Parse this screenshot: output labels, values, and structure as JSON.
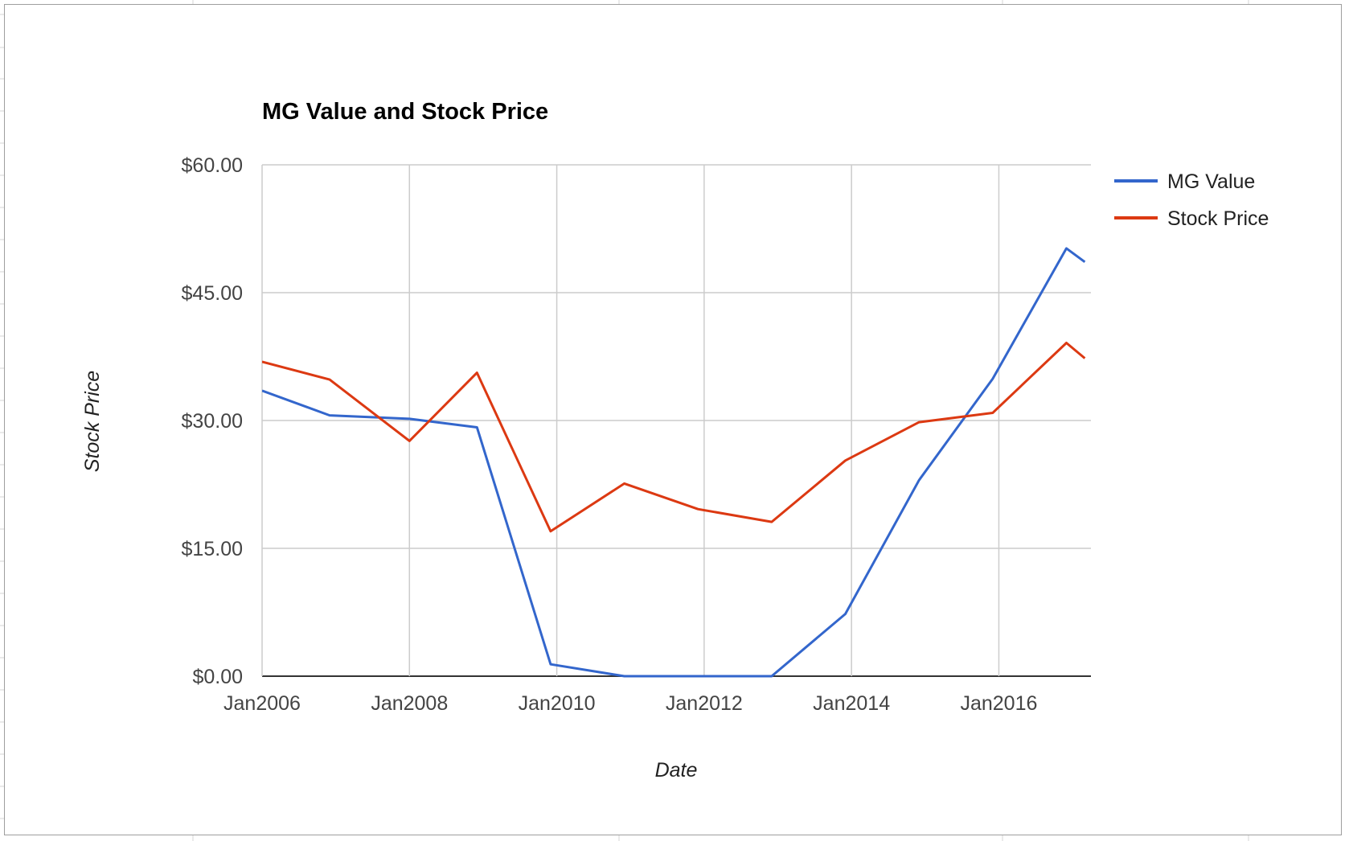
{
  "chart_data": {
    "type": "line",
    "title": "MG Value and Stock Price",
    "xlabel": "Date",
    "ylabel": "Stock Price",
    "ylim": [
      0,
      60
    ],
    "xlim": [
      "2006-01",
      "2017-04"
    ],
    "y_ticks": [
      "$0.00",
      "$15.00",
      "$30.00",
      "$45.00",
      "$60.00"
    ],
    "y_tick_values": [
      0,
      15,
      30,
      45,
      60
    ],
    "x_ticks": [
      "Jan2006",
      "Jan2008",
      "Jan2010",
      "Jan2012",
      "Jan2014",
      "Jan2016"
    ],
    "x_tick_values": [
      "2006-01",
      "2008-01",
      "2010-01",
      "2012-01",
      "2014-01",
      "2016-01"
    ],
    "grid": true,
    "legend_position": "right",
    "series": [
      {
        "name": "MG Value",
        "color": "#3366cc",
        "points": [
          {
            "x": "2006-01",
            "y": 33.5
          },
          {
            "x": "2006-12",
            "y": 30.6
          },
          {
            "x": "2008-01",
            "y": 30.2
          },
          {
            "x": "2008-12",
            "y": 29.2
          },
          {
            "x": "2009-12",
            "y": 1.4
          },
          {
            "x": "2010-12",
            "y": 0
          },
          {
            "x": "2011-12",
            "y": 0
          },
          {
            "x": "2012-12",
            "y": 0
          },
          {
            "x": "2013-12",
            "y": 7.3
          },
          {
            "x": "2014-12",
            "y": 23.0
          },
          {
            "x": "2015-12",
            "y": 34.9
          },
          {
            "x": "2016-12",
            "y": 50.2
          },
          {
            "x": "2017-03",
            "y": 48.6
          }
        ]
      },
      {
        "name": "Stock Price",
        "color": "#dc3912",
        "points": [
          {
            "x": "2006-01",
            "y": 36.9
          },
          {
            "x": "2006-12",
            "y": 34.8
          },
          {
            "x": "2008-01",
            "y": 27.6
          },
          {
            "x": "2008-12",
            "y": 35.6
          },
          {
            "x": "2009-12",
            "y": 17.0
          },
          {
            "x": "2010-12",
            "y": 22.6
          },
          {
            "x": "2011-12",
            "y": 19.6
          },
          {
            "x": "2012-12",
            "y": 18.1
          },
          {
            "x": "2013-12",
            "y": 25.3
          },
          {
            "x": "2014-12",
            "y": 29.8
          },
          {
            "x": "2015-12",
            "y": 30.9
          },
          {
            "x": "2016-12",
            "y": 39.1
          },
          {
            "x": "2017-03",
            "y": 37.3
          }
        ]
      }
    ]
  }
}
